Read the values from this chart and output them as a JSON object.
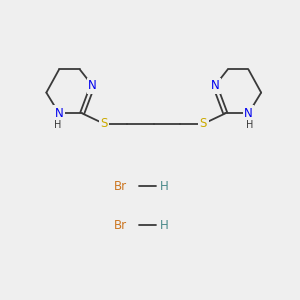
{
  "bg_color": "#efefef",
  "bond_color": "#3a3a3a",
  "N_color": "#0000ee",
  "S_color": "#ccaa00",
  "Br_color": "#cc7722",
  "H_color": "#4a8a8a",
  "line_width": 1.3,
  "font_size": 8.5,
  "small_font_size": 7.0,
  "fig_width": 3.0,
  "fig_height": 3.0,
  "dpi": 100,
  "xlim": [
    0,
    10
  ],
  "ylim": [
    0,
    10
  ]
}
